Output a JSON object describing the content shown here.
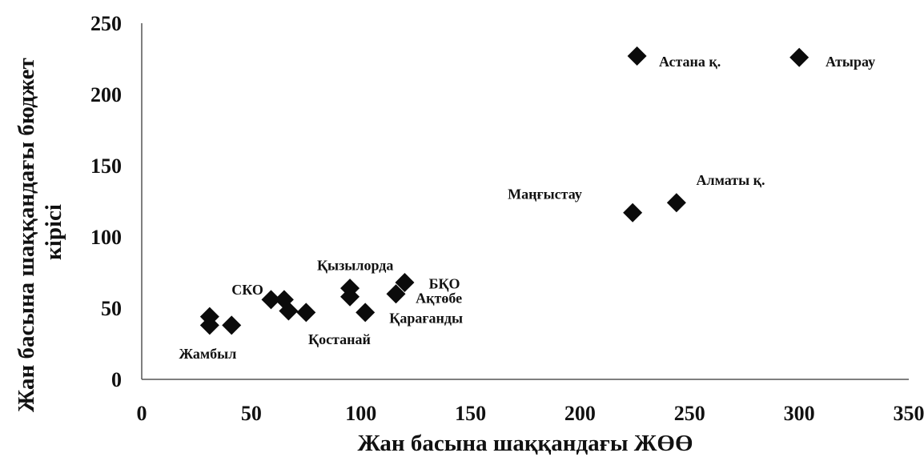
{
  "chart_data": {
    "type": "scatter",
    "xlabel": "Жан басына шаққандағы ЖӨӨ",
    "ylabel_lines": [
      "Жан басына шаққандағы бюджет",
      "кірісі"
    ],
    "xlim": [
      0,
      350
    ],
    "ylim": [
      0,
      250
    ],
    "xticks": [
      0,
      50,
      100,
      150,
      200,
      250,
      300,
      350
    ],
    "yticks": [
      0,
      50,
      100,
      150,
      200,
      250
    ],
    "grid": false,
    "marker": "diamond",
    "marker_color": "#0b0b0b",
    "points": [
      {
        "x": 31,
        "y": 44
      },
      {
        "x": 31,
        "y": 38
      },
      {
        "x": 41,
        "y": 38
      },
      {
        "x": 59,
        "y": 56
      },
      {
        "x": 65,
        "y": 56
      },
      {
        "x": 67,
        "y": 48
      },
      {
        "x": 75,
        "y": 47
      },
      {
        "x": 95,
        "y": 64
      },
      {
        "x": 95,
        "y": 58
      },
      {
        "x": 102,
        "y": 47
      },
      {
        "x": 116,
        "y": 60
      },
      {
        "x": 120,
        "y": 68
      },
      {
        "x": 224,
        "y": 117
      },
      {
        "x": 244,
        "y": 124
      },
      {
        "x": 226,
        "y": 227
      },
      {
        "x": 300,
        "y": 226
      }
    ],
    "annotations": [
      {
        "text": "Жамбыл",
        "x": 17,
        "y": 18
      },
      {
        "text": "СКО",
        "x": 41,
        "y": 63
      },
      {
        "text": "Қостанай",
        "x": 76,
        "y": 28
      },
      {
        "text": "Қызылорда",
        "x": 80,
        "y": 80
      },
      {
        "text": "БҚО",
        "x": 131,
        "y": 67
      },
      {
        "text": "Ақтөбе",
        "x": 125,
        "y": 57
      },
      {
        "text": "Қарағанды",
        "x": 113,
        "y": 43
      },
      {
        "text": "Маңғыстау",
        "x": 167,
        "y": 130
      },
      {
        "text": "Алматы қ.",
        "x": 253,
        "y": 140
      },
      {
        "text": "Астана қ.",
        "x": 236,
        "y": 223
      },
      {
        "text": "Атырау",
        "x": 312,
        "y": 223
      }
    ]
  }
}
